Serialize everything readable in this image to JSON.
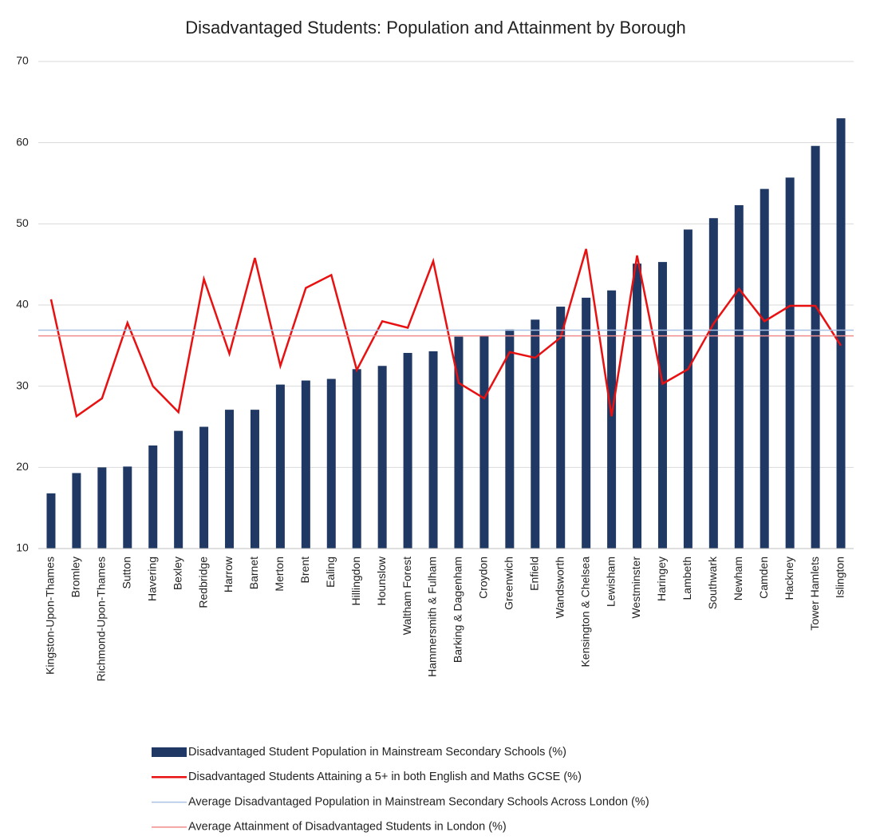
{
  "chart_data": {
    "type": "bar",
    "title": "Disadvantaged Students: Population and Attainment by Borough",
    "categories": [
      "Kingston-Upon-Thames",
      "Bromley",
      "Richmond-Upon-Thames",
      "Sutton",
      "Havering",
      "Bexley",
      "Redbridge",
      "Harrow",
      "Barnet",
      "Merton",
      "Brent",
      "Ealing",
      "Hillingdon",
      "Hounslow",
      "Waltham Forest",
      "Hammersmith & Fulham",
      "Barking & Dagenham",
      "Croydon",
      "Greenwich",
      "Enfield",
      "Wandsworth",
      "Kensington & Chelsea",
      "Lewisham",
      "Westminster",
      "Haringey",
      "Lambeth",
      "Southwark",
      "Newham",
      "Camden",
      "Hackney",
      "Tower Hamlets",
      "Islington"
    ],
    "series": [
      {
        "name": "Disadvantaged Student Population in Mainstream Secondary Schools (%)",
        "type": "bar",
        "color": "#203864",
        "values": [
          16.8,
          19.3,
          20.0,
          20.1,
          22.7,
          24.5,
          25.0,
          27.1,
          27.1,
          30.2,
          30.7,
          30.9,
          32.1,
          32.5,
          34.1,
          34.3,
          36.1,
          36.2,
          37.0,
          38.2,
          39.8,
          40.9,
          41.8,
          45.1,
          45.3,
          49.3,
          50.7,
          52.3,
          54.3,
          55.7,
          59.6,
          63.0
        ]
      },
      {
        "name": "Disadvantaged Students Attaining a 5+ in both English and Maths GCSE (%)",
        "type": "line",
        "color": "#e81010",
        "values": [
          40.7,
          26.3,
          28.5,
          37.8,
          30.0,
          26.8,
          43.2,
          34.0,
          45.8,
          32.5,
          42.1,
          43.7,
          32.0,
          38.0,
          37.2,
          45.4,
          30.4,
          28.5,
          34.2,
          33.5,
          36.0,
          46.9,
          26.3,
          46.1,
          30.3,
          32.1,
          37.7,
          42.0,
          38.0,
          39.9,
          39.9,
          35.0
        ]
      },
      {
        "name": "Average Disadvantaged Population in Mainstream Secondary Schools Across London (%)",
        "type": "hline",
        "color": "#a9c1e4",
        "value": 36.9
      },
      {
        "name": "Average Attainment of Disadvantaged Students in London (%)",
        "type": "hline",
        "color": "#f08c8c",
        "value": 36.2
      }
    ],
    "ylim": [
      10,
      70
    ],
    "yticks": [
      10,
      20,
      30,
      40,
      50,
      60,
      70
    ],
    "grid": true
  }
}
